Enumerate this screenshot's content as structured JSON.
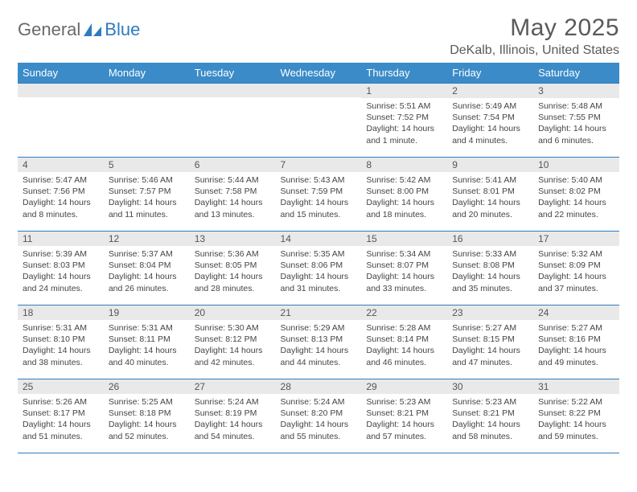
{
  "brand": {
    "part1": "General",
    "part2": "Blue"
  },
  "title": "May 2025",
  "location": "DeKalb, Illinois, United States",
  "colors": {
    "header_bg": "#3b8bc8",
    "border": "#2f7bbf",
    "daynum_bg": "#e9e9e9",
    "text": "#444"
  },
  "dayNames": [
    "Sunday",
    "Monday",
    "Tuesday",
    "Wednesday",
    "Thursday",
    "Friday",
    "Saturday"
  ],
  "weeks": [
    [
      null,
      null,
      null,
      null,
      {
        "n": "1",
        "sr": "5:51 AM",
        "ss": "7:52 PM",
        "dl": "14 hours and 1 minute."
      },
      {
        "n": "2",
        "sr": "5:49 AM",
        "ss": "7:54 PM",
        "dl": "14 hours and 4 minutes."
      },
      {
        "n": "3",
        "sr": "5:48 AM",
        "ss": "7:55 PM",
        "dl": "14 hours and 6 minutes."
      }
    ],
    [
      {
        "n": "4",
        "sr": "5:47 AM",
        "ss": "7:56 PM",
        "dl": "14 hours and 8 minutes."
      },
      {
        "n": "5",
        "sr": "5:46 AM",
        "ss": "7:57 PM",
        "dl": "14 hours and 11 minutes."
      },
      {
        "n": "6",
        "sr": "5:44 AM",
        "ss": "7:58 PM",
        "dl": "14 hours and 13 minutes."
      },
      {
        "n": "7",
        "sr": "5:43 AM",
        "ss": "7:59 PM",
        "dl": "14 hours and 15 minutes."
      },
      {
        "n": "8",
        "sr": "5:42 AM",
        "ss": "8:00 PM",
        "dl": "14 hours and 18 minutes."
      },
      {
        "n": "9",
        "sr": "5:41 AM",
        "ss": "8:01 PM",
        "dl": "14 hours and 20 minutes."
      },
      {
        "n": "10",
        "sr": "5:40 AM",
        "ss": "8:02 PM",
        "dl": "14 hours and 22 minutes."
      }
    ],
    [
      {
        "n": "11",
        "sr": "5:39 AM",
        "ss": "8:03 PM",
        "dl": "14 hours and 24 minutes."
      },
      {
        "n": "12",
        "sr": "5:37 AM",
        "ss": "8:04 PM",
        "dl": "14 hours and 26 minutes."
      },
      {
        "n": "13",
        "sr": "5:36 AM",
        "ss": "8:05 PM",
        "dl": "14 hours and 28 minutes."
      },
      {
        "n": "14",
        "sr": "5:35 AM",
        "ss": "8:06 PM",
        "dl": "14 hours and 31 minutes."
      },
      {
        "n": "15",
        "sr": "5:34 AM",
        "ss": "8:07 PM",
        "dl": "14 hours and 33 minutes."
      },
      {
        "n": "16",
        "sr": "5:33 AM",
        "ss": "8:08 PM",
        "dl": "14 hours and 35 minutes."
      },
      {
        "n": "17",
        "sr": "5:32 AM",
        "ss": "8:09 PM",
        "dl": "14 hours and 37 minutes."
      }
    ],
    [
      {
        "n": "18",
        "sr": "5:31 AM",
        "ss": "8:10 PM",
        "dl": "14 hours and 38 minutes."
      },
      {
        "n": "19",
        "sr": "5:31 AM",
        "ss": "8:11 PM",
        "dl": "14 hours and 40 minutes."
      },
      {
        "n": "20",
        "sr": "5:30 AM",
        "ss": "8:12 PM",
        "dl": "14 hours and 42 minutes."
      },
      {
        "n": "21",
        "sr": "5:29 AM",
        "ss": "8:13 PM",
        "dl": "14 hours and 44 minutes."
      },
      {
        "n": "22",
        "sr": "5:28 AM",
        "ss": "8:14 PM",
        "dl": "14 hours and 46 minutes."
      },
      {
        "n": "23",
        "sr": "5:27 AM",
        "ss": "8:15 PM",
        "dl": "14 hours and 47 minutes."
      },
      {
        "n": "24",
        "sr": "5:27 AM",
        "ss": "8:16 PM",
        "dl": "14 hours and 49 minutes."
      }
    ],
    [
      {
        "n": "25",
        "sr": "5:26 AM",
        "ss": "8:17 PM",
        "dl": "14 hours and 51 minutes."
      },
      {
        "n": "26",
        "sr": "5:25 AM",
        "ss": "8:18 PM",
        "dl": "14 hours and 52 minutes."
      },
      {
        "n": "27",
        "sr": "5:24 AM",
        "ss": "8:19 PM",
        "dl": "14 hours and 54 minutes."
      },
      {
        "n": "28",
        "sr": "5:24 AM",
        "ss": "8:20 PM",
        "dl": "14 hours and 55 minutes."
      },
      {
        "n": "29",
        "sr": "5:23 AM",
        "ss": "8:21 PM",
        "dl": "14 hours and 57 minutes."
      },
      {
        "n": "30",
        "sr": "5:23 AM",
        "ss": "8:21 PM",
        "dl": "14 hours and 58 minutes."
      },
      {
        "n": "31",
        "sr": "5:22 AM",
        "ss": "8:22 PM",
        "dl": "14 hours and 59 minutes."
      }
    ]
  ],
  "labels": {
    "sunrise": "Sunrise:",
    "sunset": "Sunset:",
    "daylight": "Daylight:"
  }
}
